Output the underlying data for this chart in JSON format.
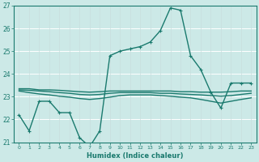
{
  "xlabel": "Humidex (Indice chaleur)",
  "ylabel": "",
  "xlim": [
    -0.5,
    23.5
  ],
  "ylim": [
    21,
    27
  ],
  "yticks": [
    21,
    22,
    23,
    24,
    25,
    26,
    27
  ],
  "xticks": [
    0,
    1,
    2,
    3,
    4,
    5,
    6,
    7,
    8,
    9,
    10,
    11,
    12,
    13,
    14,
    15,
    16,
    17,
    18,
    19,
    20,
    21,
    22,
    23
  ],
  "bg_color": "#cce9e7",
  "grid_color": "#b0d8d5",
  "line_color": "#1a7a6e",
  "series": [
    {
      "x": [
        0,
        1,
        2,
        3,
        4,
        5,
        6,
        7,
        8,
        9,
        10,
        11,
        12,
        13,
        14,
        15,
        16,
        17,
        18,
        19,
        20,
        21,
        22,
        23
      ],
      "y": [
        22.2,
        21.5,
        22.8,
        22.8,
        22.3,
        22.3,
        21.2,
        20.8,
        21.5,
        24.8,
        25.0,
        25.1,
        25.2,
        25.4,
        25.9,
        26.9,
        26.8,
        24.8,
        24.2,
        23.2,
        22.5,
        23.6,
        23.6,
        23.6
      ],
      "marker": "+",
      "linewidth": 1.0,
      "markersize": 3
    },
    {
      "x": [
        0,
        1,
        2,
        3,
        4,
        5,
        6,
        7,
        8,
        9,
        10,
        11,
        12,
        13,
        14,
        15,
        16,
        17,
        18,
        19,
        20,
        21,
        22,
        23
      ],
      "y": [
        23.35,
        23.35,
        23.3,
        23.3,
        23.28,
        23.25,
        23.22,
        23.2,
        23.22,
        23.25,
        23.25,
        23.25,
        23.25,
        23.25,
        23.25,
        23.25,
        23.22,
        23.22,
        23.2,
        23.2,
        23.2,
        23.22,
        23.25,
        23.25
      ],
      "marker": null,
      "linewidth": 1.0,
      "markersize": 0
    },
    {
      "x": [
        0,
        1,
        2,
        3,
        4,
        5,
        6,
        7,
        8,
        9,
        10,
        11,
        12,
        13,
        14,
        15,
        16,
        17,
        18,
        19,
        20,
        21,
        22,
        23
      ],
      "y": [
        23.3,
        23.28,
        23.25,
        23.22,
        23.18,
        23.15,
        23.1,
        23.08,
        23.1,
        23.15,
        23.18,
        23.18,
        23.18,
        23.18,
        23.15,
        23.15,
        23.12,
        23.1,
        23.08,
        23.05,
        23.02,
        23.05,
        23.1,
        23.15
      ],
      "marker": null,
      "linewidth": 1.0,
      "markersize": 0
    },
    {
      "x": [
        0,
        1,
        2,
        3,
        4,
        5,
        6,
        7,
        8,
        9,
        10,
        11,
        12,
        13,
        14,
        15,
        16,
        17,
        18,
        19,
        20,
        21,
        22,
        23
      ],
      "y": [
        23.25,
        23.18,
        23.12,
        23.08,
        23.02,
        22.98,
        22.92,
        22.88,
        22.92,
        22.98,
        23.05,
        23.08,
        23.08,
        23.08,
        23.05,
        23.02,
        22.98,
        22.95,
        22.88,
        22.8,
        22.72,
        22.8,
        22.88,
        22.95
      ],
      "marker": null,
      "linewidth": 1.0,
      "markersize": 0
    }
  ]
}
